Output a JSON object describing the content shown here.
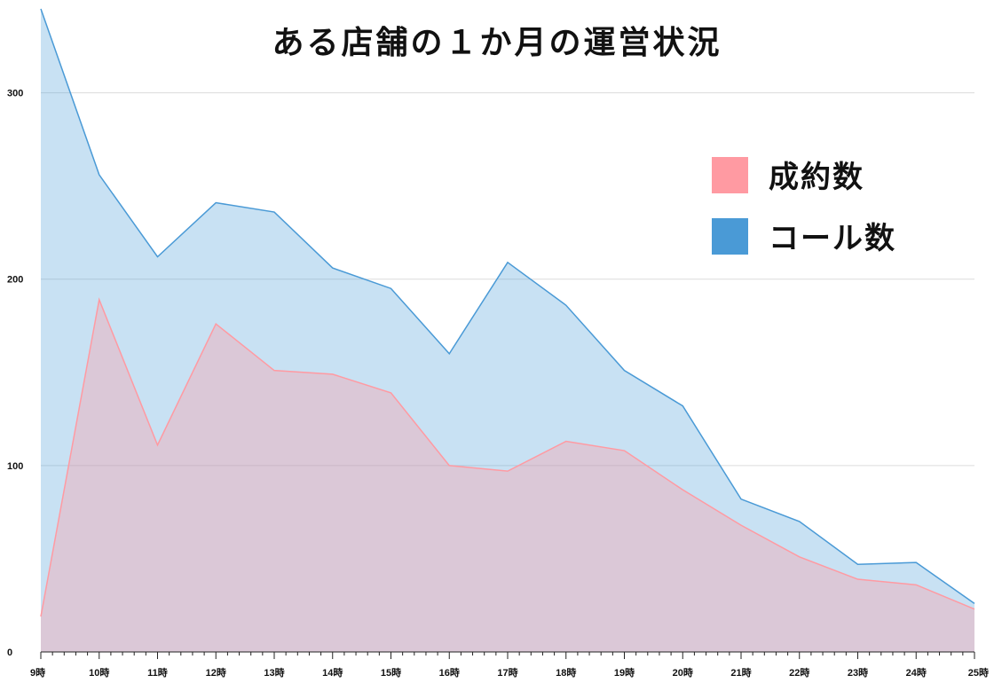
{
  "chart_data": {
    "type": "area",
    "title": "ある店舗の１か月の運営状況",
    "categories": [
      "9時",
      "10時",
      "11時",
      "12時",
      "13時",
      "14時",
      "15時",
      "16時",
      "17時",
      "18時",
      "19時",
      "20時",
      "21時",
      "22時",
      "23時",
      "24時",
      "25時"
    ],
    "series": [
      {
        "name": "コール数",
        "color": "#4a9ad6",
        "values": [
          345,
          256,
          212,
          241,
          236,
          206,
          195,
          160,
          209,
          186,
          151,
          132,
          82,
          70,
          47,
          48,
          26
        ]
      },
      {
        "name": "成約数",
        "color": "#ff9aa2",
        "values": [
          19,
          189,
          111,
          176,
          151,
          149,
          139,
          100,
          97,
          113,
          108,
          87,
          68,
          51,
          39,
          36,
          23
        ]
      }
    ],
    "ylim": [
      0,
      345
    ],
    "yticks": [
      0,
      100,
      200,
      300
    ],
    "grid": true,
    "legend": "top-right",
    "legend_order": [
      "成約数",
      "コール数"
    ]
  }
}
